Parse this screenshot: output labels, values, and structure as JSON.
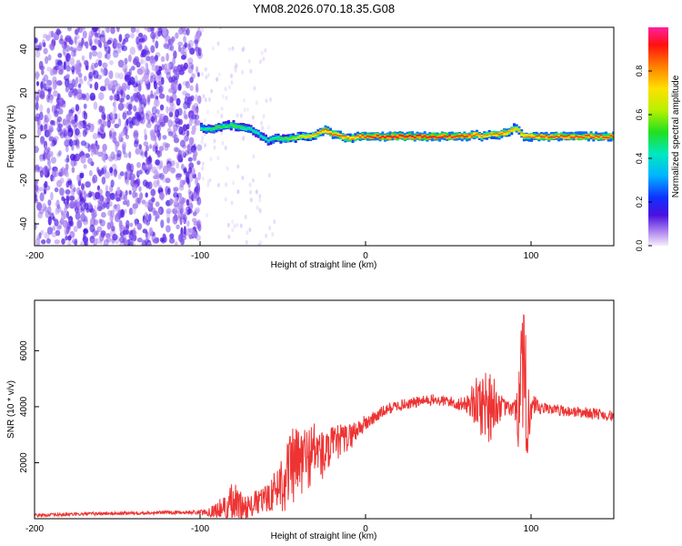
{
  "title": "YM08.2026.070.18.35.G08",
  "chart_data": [
    {
      "type": "heatmap",
      "xlabel": "Height of straight line (km)",
      "ylabel": "Frequency (Hz)",
      "xlim": [
        -200,
        150
      ],
      "ylim": [
        -50,
        50
      ],
      "xticks": [
        -200,
        -100,
        0,
        100
      ],
      "yticks": [
        -40,
        -20,
        0,
        20,
        40
      ],
      "colorbar": {
        "label": "Normalized spectral amplitude",
        "range": [
          0,
          1
        ],
        "ticks": [
          "0.0",
          "0.2",
          "0.4",
          "0.6",
          "0.8"
        ],
        "tick_values": [
          0.0,
          0.2,
          0.4,
          0.6,
          0.8
        ]
      },
      "noise_region_x": [
        -200,
        -100
      ],
      "ridge": [
        {
          "x": -100,
          "f": 4,
          "amp": 0.45
        },
        {
          "x": -95,
          "f": 3,
          "amp": 0.5
        },
        {
          "x": -90,
          "f": 4,
          "amp": 0.55
        },
        {
          "x": -85,
          "f": 5,
          "amp": 0.5
        },
        {
          "x": -80,
          "f": 5,
          "amp": 0.55
        },
        {
          "x": -75,
          "f": 4,
          "amp": 0.5
        },
        {
          "x": -70,
          "f": 3,
          "amp": 0.45
        },
        {
          "x": -65,
          "f": 1,
          "amp": 0.45
        },
        {
          "x": -60,
          "f": -2,
          "amp": 0.45
        },
        {
          "x": -55,
          "f": -1,
          "amp": 0.5
        },
        {
          "x": -50,
          "f": -1,
          "amp": 0.55
        },
        {
          "x": -45,
          "f": -1,
          "amp": 0.6
        },
        {
          "x": -40,
          "f": 0,
          "amp": 0.7
        },
        {
          "x": -35,
          "f": 0,
          "amp": 0.75
        },
        {
          "x": -30,
          "f": 1,
          "amp": 0.8
        },
        {
          "x": -25,
          "f": 3,
          "amp": 0.85
        },
        {
          "x": -20,
          "f": 1,
          "amp": 0.85
        },
        {
          "x": -15,
          "f": 0,
          "amp": 0.85
        },
        {
          "x": -10,
          "f": -1,
          "amp": 0.8
        },
        {
          "x": -5,
          "f": 0,
          "amp": 0.85
        },
        {
          "x": 0,
          "f": 0,
          "amp": 0.9
        },
        {
          "x": 10,
          "f": 0,
          "amp": 0.92
        },
        {
          "x": 20,
          "f": 0,
          "amp": 0.92
        },
        {
          "x": 30,
          "f": 0,
          "amp": 0.92
        },
        {
          "x": 40,
          "f": 0,
          "amp": 0.92
        },
        {
          "x": 50,
          "f": 0,
          "amp": 0.9
        },
        {
          "x": 60,
          "f": 0,
          "amp": 0.9
        },
        {
          "x": 65,
          "f": 1,
          "amp": 0.85
        },
        {
          "x": 70,
          "f": 0,
          "amp": 0.8
        },
        {
          "x": 75,
          "f": 1,
          "amp": 0.8
        },
        {
          "x": 80,
          "f": 1,
          "amp": 0.85
        },
        {
          "x": 85,
          "f": 2,
          "amp": 0.8
        },
        {
          "x": 90,
          "f": 4,
          "amp": 0.75
        },
        {
          "x": 95,
          "f": 0,
          "amp": 0.8
        },
        {
          "x": 100,
          "f": 0,
          "amp": 0.85
        },
        {
          "x": 110,
          "f": 0,
          "amp": 0.88
        },
        {
          "x": 120,
          "f": 0,
          "amp": 0.88
        },
        {
          "x": 130,
          "f": 0,
          "amp": 0.88
        },
        {
          "x": 140,
          "f": 0,
          "amp": 0.88
        },
        {
          "x": 150,
          "f": 0,
          "amp": 0.88
        }
      ]
    },
    {
      "type": "line",
      "xlabel": "Height of straight line (km)",
      "ylabel": "SNR (10 * v/v)",
      "xlim": [
        -200,
        150
      ],
      "ylim": [
        0,
        7800
      ],
      "xticks": [
        -200,
        -100,
        0,
        100
      ],
      "yticks": [
        2000,
        4000,
        6000
      ],
      "series": [
        {
          "name": "SNR",
          "color": "#ee3333",
          "x": [
            -200,
            -180,
            -160,
            -140,
            -120,
            -100,
            -95,
            -90,
            -85,
            -80,
            -75,
            -70,
            -65,
            -60,
            -55,
            -50,
            -45,
            -40,
            -35,
            -30,
            -25,
            -20,
            -15,
            -10,
            -5,
            0,
            5,
            10,
            15,
            20,
            25,
            30,
            35,
            40,
            45,
            50,
            55,
            60,
            65,
            70,
            75,
            80,
            85,
            90,
            95,
            100,
            105,
            110,
            115,
            120,
            130,
            140,
            150
          ],
          "y": [
            120,
            150,
            180,
            200,
            220,
            230,
            250,
            300,
            380,
            500,
            450,
            400,
            600,
            700,
            1000,
            1400,
            1800,
            2000,
            2200,
            2500,
            2200,
            2600,
            2800,
            2900,
            3200,
            3400,
            3600,
            3800,
            3950,
            4050,
            4100,
            4150,
            4200,
            4250,
            4200,
            4200,
            4100,
            4100,
            4150,
            4100,
            4150,
            4000,
            3950,
            3900,
            4300,
            3900,
            3900,
            3950,
            3900,
            3850,
            3800,
            3750,
            3650
          ],
          "noise_amplitude": [
            60,
            60,
            60,
            60,
            60,
            80,
            150,
            300,
            500,
            900,
            500,
            400,
            500,
            500,
            700,
            1200,
            1400,
            1400,
            1200,
            1100,
            900,
            700,
            600,
            500,
            400,
            300,
            250,
            220,
            200,
            200,
            200,
            200,
            200,
            200,
            200,
            200,
            220,
            250,
            700,
            1200,
            1500,
            600,
            250,
            300,
            3500,
            700,
            250,
            200,
            200,
            200,
            200,
            200,
            200
          ]
        }
      ]
    }
  ]
}
